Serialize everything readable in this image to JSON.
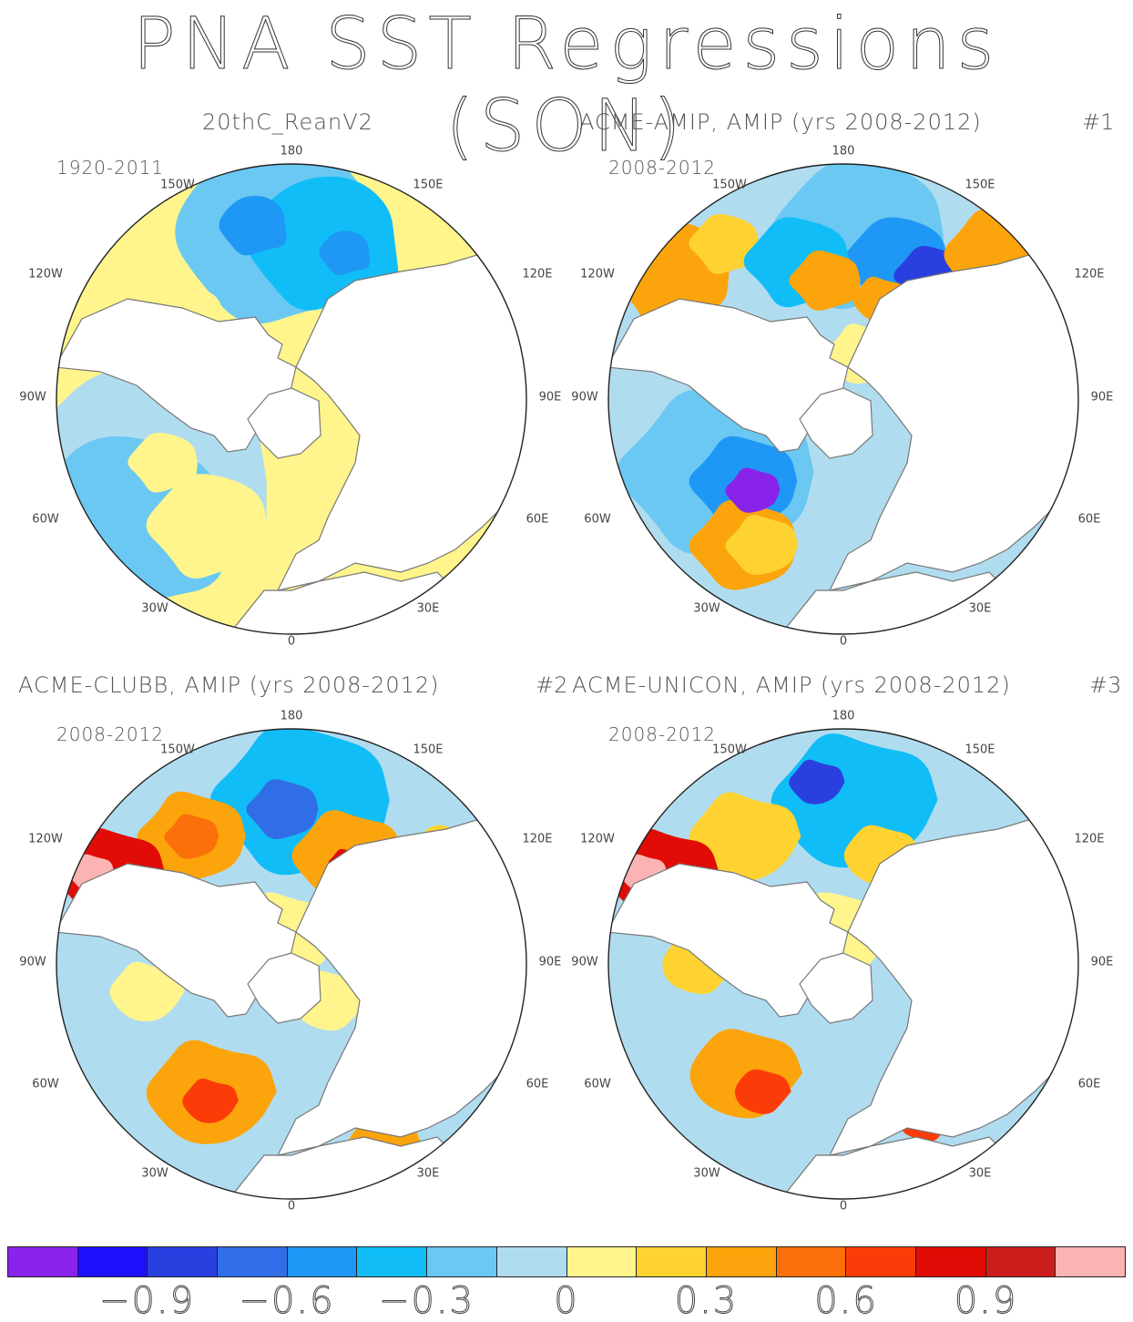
{
  "title": "PNA SST Regressions (SON)",
  "panels": [
    {
      "id": "p1",
      "title": "20thC_ReanV2",
      "number": "",
      "period": "1920-2011"
    },
    {
      "id": "p2",
      "title": "ACME-AMIP, AMIP (yrs 2008-2012)",
      "number": "#1",
      "period": "2008-2012"
    },
    {
      "id": "p3",
      "title": "ACME-CLUBB, AMIP (yrs 2008-2012)",
      "number": "#2",
      "period": "2008-2012"
    },
    {
      "id": "p4",
      "title": "ACME-UNICON, AMIP (yrs 2008-2012)",
      "number": "#3",
      "period": "2008-2012"
    }
  ],
  "longitude_labels": {
    "top": "180",
    "top_left": "150W",
    "top_right": "150E",
    "upper_left": "120W",
    "upper_right": "120E",
    "left": "90W",
    "right": "90E",
    "lower_left": "60W",
    "lower_right": "60E",
    "bottom_left": "30W",
    "bottom_right": "30E",
    "bottom": "0"
  },
  "colorbar": {
    "colors": [
      "#8a23ea",
      "#1e10fb",
      "#2a3fe0",
      "#2f6ee6",
      "#1f97f5",
      "#11bdf6",
      "#6ac8f2",
      "#b0dcf0",
      "#fff58c",
      "#fdd231",
      "#fca40b",
      "#fb700a",
      "#fb3c08",
      "#e00c05",
      "#cc1d1d",
      "#fcb3b3"
    ],
    "tick_labels": [
      "-0.9",
      "-0.6",
      "-0.3",
      "0",
      "0.3",
      "0.6",
      "0.9"
    ],
    "tick_values": [
      -0.9,
      -0.6,
      -0.3,
      0,
      0.3,
      0.6,
      0.9
    ],
    "range": [
      -1.2,
      1.2
    ],
    "contour_interval": 0.15
  }
}
